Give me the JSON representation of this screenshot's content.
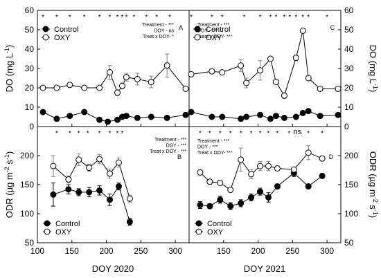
{
  "chart_data": [
    {
      "type": "line",
      "panel": "A",
      "year": 2020,
      "ylabel": "DO (mg L⁻¹)",
      "ylim": [
        0,
        60
      ],
      "yticks": [
        0,
        10,
        20,
        30,
        40,
        50,
        60
      ],
      "xlim": [
        100,
        320
      ],
      "xticks": [
        100,
        150,
        200,
        250,
        300
      ],
      "xticklabels": [
        "100",
        "150",
        "200",
        "250",
        "300"
      ],
      "legend": [
        "Control",
        "OXY"
      ],
      "legend_position": "top-left",
      "stats": [
        "Treatment - ***",
        "DOY - ns",
        "Treat x DOY- *"
      ],
      "significance_days": [
        108,
        128,
        147,
        168,
        190,
        205,
        216,
        223,
        229,
        240,
        258,
        273,
        292
      ],
      "significance_symbol": "*",
      "series": [
        {
          "name": "Control",
          "marker": "filled",
          "x": [
            108,
            128,
            147,
            168,
            190,
            202,
            216,
            223,
            229,
            245,
            265,
            288,
            315
          ],
          "y": [
            7.5,
            4,
            5.5,
            7.5,
            3.5,
            2.5,
            3.5,
            5,
            5.5,
            4.5,
            5,
            4.5,
            6
          ],
          "err": [
            0.8,
            0.8,
            0.8,
            0.8,
            1,
            0.8,
            1,
            1,
            0.8,
            0.8,
            0.8,
            0.8,
            1
          ]
        },
        {
          "name": "OXY",
          "marker": "open",
          "x": [
            108,
            128,
            147,
            168,
            190,
            205,
            216,
            223,
            229,
            245,
            265,
            288,
            315
          ],
          "y": [
            20,
            20,
            21.5,
            20,
            20,
            28,
            17.5,
            21,
            25.5,
            24.5,
            23,
            31.5,
            19.5
          ],
          "err": [
            0.5,
            0.5,
            1,
            0.5,
            1,
            3.5,
            1.5,
            1.5,
            2,
            3,
            3,
            6,
            1
          ]
        }
      ]
    },
    {
      "type": "line",
      "panel": "C",
      "year": 2021,
      "ylabel": "DO (mg L⁻¹)",
      "ylim": [
        0,
        60
      ],
      "yticks": [
        0,
        10,
        20,
        30,
        40,
        50,
        60
      ],
      "xlim": [
        100,
        320
      ],
      "xticks": [
        150,
        200,
        250,
        300
      ],
      "xticklabels": [
        "150",
        "200",
        "250",
        "300"
      ],
      "legend": [
        "Control",
        "OXY"
      ],
      "legend_position": "top-left",
      "stats": [
        "Treatment - ***",
        "DOY - ***",
        "Treat x DOY- ***"
      ],
      "significance_days": [
        103,
        133,
        148,
        180,
        203,
        218,
        226,
        238,
        246,
        255,
        265,
        273,
        300
      ],
      "significance_symbol": "*",
      "series": [
        {
          "name": "Control",
          "marker": "filled",
          "x": [
            103,
            133,
            148,
            175,
            183,
            203,
            218,
            226,
            238,
            255,
            265,
            273,
            290,
            316
          ],
          "y": [
            7.5,
            5,
            5,
            4,
            5,
            6,
            4,
            5.5,
            4.5,
            5,
            7,
            8,
            5.5,
            6
          ],
          "err": [
            0.8,
            0.8,
            0.8,
            0.8,
            0.8,
            0.8,
            0.8,
            0.8,
            0.8,
            1,
            1,
            1,
            1,
            1
          ]
        },
        {
          "name": "OXY",
          "marker": "open",
          "x": [
            103,
            133,
            148,
            175,
            183,
            203,
            218,
            226,
            238,
            255,
            265,
            273,
            290,
            316
          ],
          "y": [
            27,
            28.5,
            28,
            31.5,
            22.5,
            29,
            35,
            23,
            16,
            35.5,
            49.5,
            25,
            19.5,
            19.5
          ],
          "err": [
            0.5,
            0.5,
            0.5,
            3,
            2.5,
            5,
            1,
            1,
            1.5,
            1.5,
            1,
            1,
            1,
            1
          ]
        }
      ]
    },
    {
      "type": "line",
      "panel": "B",
      "year": 2020,
      "ylabel": "ODR (µg m⁻² s⁻¹)",
      "xlabel": "DOY 2020",
      "ylim": [
        50,
        250
      ],
      "yticks": [
        50,
        100,
        150,
        200
      ],
      "xlim": [
        100,
        320
      ],
      "xticks": [
        100,
        150,
        200,
        250,
        300
      ],
      "xticklabels": [
        "100",
        "150",
        "200",
        "250",
        "300"
      ],
      "legend": [
        "Control",
        "OXY"
      ],
      "legend_position": "bottom-left",
      "stats": [
        "Treatment - ***",
        "DOY - ***",
        "Treat x DOY - ***"
      ],
      "significance_days": [
        128,
        147,
        160,
        173,
        190,
        205,
        216,
        223
      ],
      "significance_symbol": "*",
      "series": [
        {
          "name": "Control",
          "marker": "filled",
          "x": [
            123,
            145,
            160,
            175,
            190,
            205,
            218,
            234
          ],
          "y": [
            133,
            142,
            137,
            137,
            140,
            124,
            147,
            86
          ],
          "err": [
            20,
            8,
            6,
            8,
            8,
            10,
            6,
            6
          ]
        },
        {
          "name": "OXY",
          "marker": "open",
          "x": [
            123,
            145,
            160,
            175,
            190,
            205,
            218,
            234
          ],
          "y": [
            182,
            159,
            193,
            179,
            194,
            169,
            188,
            126
          ],
          "err": [
            18,
            6,
            10,
            6,
            8,
            8,
            8,
            6
          ]
        }
      ]
    },
    {
      "type": "line",
      "panel": "D",
      "year": 2021,
      "ylabel": "ODR (µg m⁻² s⁻¹)",
      "xlabel": "DOY 2021",
      "ylim": [
        50,
        250
      ],
      "yticks": [
        50,
        100,
        150,
        200
      ],
      "xlim": [
        100,
        320
      ],
      "xticks": [
        150,
        200,
        250,
        300
      ],
      "xticklabels": [
        "150",
        "200",
        "250",
        "300"
      ],
      "legend": [
        "Control",
        "OXY"
      ],
      "legend_position": "bottom-left",
      "stats": [
        "Treatment - ***",
        "DOY - ***",
        "Treat x DOY- ***"
      ],
      "significance_days": [
        116,
        130,
        145,
        160,
        175,
        190,
        203,
        215,
        228,
        245,
        273,
        293
      ],
      "significance_symbol": "*",
      "significance_ns_day": 257,
      "significance_ns_label": "ns",
      "series": [
        {
          "name": "Control",
          "marker": "filled",
          "x": [
            116,
            130,
            145,
            160,
            175,
            190,
            203,
            215,
            228,
            252,
            273,
            293
          ],
          "y": [
            115,
            113,
            124,
            113,
            118,
            128,
            138,
            128,
            147,
            170,
            147,
            165
          ],
          "err": [
            6,
            4,
            6,
            6,
            6,
            6,
            6,
            8,
            4,
            6,
            4,
            4
          ]
        },
        {
          "name": "OXY",
          "marker": "open",
          "x": [
            116,
            130,
            145,
            160,
            175,
            190,
            203,
            215,
            228,
            252,
            273,
            293
          ],
          "y": [
            171,
            155,
            153,
            141,
            193,
            168,
            182,
            182,
            178,
            176,
            205,
            195
          ],
          "err": [
            4,
            4,
            4,
            4,
            20,
            8,
            8,
            8,
            4,
            4,
            12,
            4
          ]
        }
      ]
    }
  ]
}
